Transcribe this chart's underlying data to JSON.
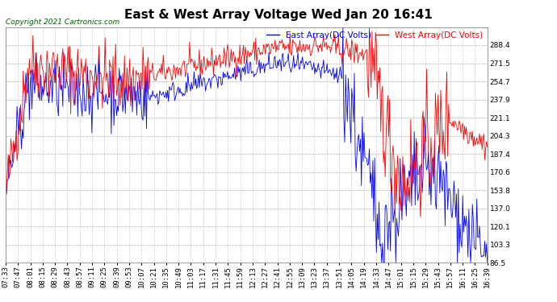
{
  "title": "East & West Array Voltage Wed Jan 20 16:41",
  "copyright": "Copyright 2021 Cartronics.com",
  "legend_east": "East Array(DC Volts)",
  "legend_west": "West Array(DC Volts)",
  "east_color": "blue",
  "west_color": "red",
  "ylim": [
    86.5,
    305.0
  ],
  "yticks": [
    86.5,
    103.3,
    120.1,
    137.0,
    153.8,
    170.6,
    187.4,
    204.3,
    221.1,
    237.9,
    254.7,
    271.5,
    288.4
  ],
  "background_color": "white",
  "grid_color": "#aaaaaa",
  "title_fontsize": 11,
  "tick_fontsize": 6.5,
  "legend_fontsize": 7.5,
  "copyright_fontsize": 6.5,
  "xtick_labels": [
    "07:33",
    "07:47",
    "08:01",
    "08:15",
    "08:29",
    "08:43",
    "08:57",
    "09:11",
    "09:25",
    "09:39",
    "09:53",
    "10:07",
    "10:21",
    "10:35",
    "10:49",
    "11:03",
    "11:17",
    "11:31",
    "11:45",
    "11:59",
    "12:13",
    "12:27",
    "12:41",
    "12:55",
    "13:09",
    "13:23",
    "13:37",
    "13:51",
    "14:05",
    "14:19",
    "14:33",
    "14:47",
    "15:01",
    "15:15",
    "15:29",
    "15:43",
    "15:57",
    "16:11",
    "16:25",
    "16:39"
  ]
}
